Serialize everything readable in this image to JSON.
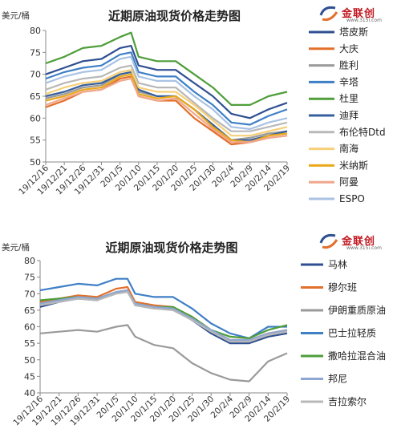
{
  "brand": {
    "name": "金联创",
    "url": "www.315i.com"
  },
  "chart_data": [
    {
      "type": "line",
      "title": "近期原油现货价格走势图",
      "ylabel": "美元/桶",
      "xlabel": "",
      "ylim": [
        50,
        80
      ],
      "yticks": [
        50,
        55,
        60,
        65,
        70,
        75,
        80
      ],
      "x_ticks": [
        "19/12/16",
        "19/12/21",
        "19/12/26",
        "19/12/31",
        "20/1/5",
        "20/1/10",
        "20/1/15",
        "20/1/20",
        "20/1/25",
        "20/1/30",
        "20/2/4",
        "20/2/9",
        "20/2/14",
        "20/2/19"
      ],
      "grid": false,
      "legend": "right",
      "series": [
        {
          "name": "塔皮斯",
          "color": "#2e4f91",
          "x": [
            "19/12/16",
            "19/12/21",
            "19/12/26",
            "19/12/31",
            "20/1/5",
            "20/1/8",
            "20/1/10",
            "20/1/15",
            "20/1/20",
            "20/1/25",
            "20/1/30",
            "20/2/4",
            "20/2/9",
            "20/2/14",
            "20/2/19"
          ],
          "values": [
            70,
            71.5,
            73,
            73.5,
            76,
            76.5,
            72,
            71,
            71,
            68,
            65,
            61,
            60,
            62,
            63.5
          ]
        },
        {
          "name": "大庆",
          "color": "#e2702c",
          "x": [
            "19/12/16",
            "19/12/21",
            "19/12/26",
            "19/12/31",
            "20/1/5",
            "20/1/8",
            "20/1/10",
            "20/1/15",
            "20/1/20",
            "20/1/25",
            "20/1/30",
            "20/2/4",
            "20/2/9",
            "20/2/14",
            "20/2/19"
          ],
          "values": [
            62.5,
            64,
            66,
            66.5,
            69,
            69.5,
            65,
            64,
            64,
            60,
            57,
            54,
            54.5,
            55.5,
            56
          ]
        },
        {
          "name": "胜利",
          "color": "#9a9a9a",
          "x": [
            "19/12/16",
            "19/12/21",
            "19/12/26",
            "19/12/31",
            "20/1/5",
            "20/1/8",
            "20/1/10",
            "20/1/15",
            "20/1/20",
            "20/1/25",
            "20/1/30",
            "20/2/4",
            "20/2/9",
            "20/2/14",
            "20/2/19"
          ],
          "values": [
            64.5,
            65.5,
            67,
            67.5,
            70,
            70.5,
            66,
            65,
            65,
            62,
            58,
            55,
            55.5,
            56.5,
            57
          ]
        },
        {
          "name": "辛塔",
          "color": "#3f7fc6",
          "x": [
            "19/12/16",
            "19/12/21",
            "19/12/26",
            "19/12/31",
            "20/1/5",
            "20/1/8",
            "20/1/10",
            "20/1/15",
            "20/1/20",
            "20/1/25",
            "20/1/30",
            "20/2/4",
            "20/2/9",
            "20/2/14",
            "20/2/19"
          ],
          "values": [
            69,
            70.5,
            71.5,
            72,
            74.5,
            75,
            70.5,
            69.5,
            69.5,
            66,
            63,
            59,
            58.5,
            60.5,
            62
          ]
        },
        {
          "name": "杜里",
          "color": "#4e9e3a",
          "x": [
            "19/12/16",
            "19/12/21",
            "19/12/26",
            "19/12/31",
            "20/1/5",
            "20/1/8",
            "20/1/10",
            "20/1/15",
            "20/1/20",
            "20/1/25",
            "20/1/30",
            "20/2/4",
            "20/2/9",
            "20/2/14",
            "20/2/19"
          ],
          "values": [
            72.5,
            74,
            76,
            76.5,
            78.5,
            79.5,
            74,
            73,
            73,
            70,
            67,
            63,
            63,
            65,
            66
          ]
        },
        {
          "name": "迪拜",
          "color": "#365f9c",
          "x": [
            "19/12/16",
            "19/12/21",
            "19/12/26",
            "19/12/31",
            "20/1/5",
            "20/1/8",
            "20/1/10",
            "20/1/15",
            "20/1/20",
            "20/1/25",
            "20/1/30",
            "20/2/4",
            "20/2/9",
            "20/2/14",
            "20/2/19"
          ],
          "values": [
            65,
            66,
            67.5,
            68,
            70,
            70.5,
            66.5,
            65,
            65,
            62,
            58.5,
            55,
            55,
            56,
            57
          ]
        },
        {
          "name": "布伦特Dtd",
          "color": "#b8b8b8",
          "x": [
            "19/12/16",
            "19/12/21",
            "19/12/26",
            "19/12/31",
            "20/1/5",
            "20/1/8",
            "20/1/10",
            "20/1/15",
            "20/1/20",
            "20/1/25",
            "20/1/30",
            "20/2/4",
            "20/2/9",
            "20/2/14",
            "20/2/19"
          ],
          "values": [
            66.5,
            68,
            69,
            69.5,
            71.5,
            72,
            68,
            67,
            67,
            63.5,
            60,
            57,
            57,
            58,
            59
          ]
        },
        {
          "name": "南海",
          "color": "#f6cf78",
          "x": [
            "19/12/16",
            "19/12/21",
            "19/12/26",
            "19/12/31",
            "20/1/5",
            "20/1/8",
            "20/1/10",
            "20/1/15",
            "20/1/20",
            "20/1/25",
            "20/1/30",
            "20/2/4",
            "20/2/9",
            "20/2/14",
            "20/2/19"
          ],
          "values": [
            65.5,
            67,
            68,
            68.5,
            70.5,
            71,
            67,
            66,
            66,
            63,
            59.5,
            56,
            56,
            57,
            58
          ]
        },
        {
          "name": "米纳斯",
          "color": "#e9a81b",
          "x": [
            "19/12/16",
            "19/12/21",
            "19/12/26",
            "19/12/31",
            "20/1/5",
            "20/1/8",
            "20/1/10",
            "20/1/15",
            "20/1/20",
            "20/1/25",
            "20/1/30",
            "20/2/4",
            "20/2/9",
            "20/2/14",
            "20/2/19"
          ],
          "values": [
            64,
            65,
            66.5,
            67,
            69.5,
            70,
            65.5,
            64.5,
            65,
            62,
            58,
            55,
            54.5,
            56,
            56.5
          ]
        },
        {
          "name": "阿曼",
          "color": "#f0a78d",
          "x": [
            "19/12/16",
            "19/12/21",
            "19/12/26",
            "19/12/31",
            "20/1/5",
            "20/1/8",
            "20/1/10",
            "20/1/15",
            "20/1/20",
            "20/1/25",
            "20/1/30",
            "20/2/4",
            "20/2/9",
            "20/2/14",
            "20/2/19"
          ],
          "values": [
            63,
            64.5,
            66,
            66.5,
            68.5,
            69,
            65,
            64,
            64.5,
            61,
            57.5,
            54.5,
            54.5,
            55.5,
            56
          ]
        },
        {
          "name": "ESPO",
          "color": "#a9c2e3",
          "x": [
            "19/12/16",
            "19/12/21",
            "19/12/26",
            "19/12/31",
            "20/1/5",
            "20/1/8",
            "20/1/10",
            "20/1/15",
            "20/1/20",
            "20/1/25",
            "20/1/30",
            "20/2/4",
            "20/2/9",
            "20/2/14",
            "20/2/19"
          ],
          "values": [
            68,
            69.5,
            70.5,
            71,
            73.5,
            74,
            69.5,
            68.5,
            68.5,
            65,
            62,
            58,
            57.5,
            59,
            60
          ]
        }
      ]
    },
    {
      "type": "line",
      "title": "近期原油现货价格走势图",
      "ylabel": "美元/桶",
      "xlabel": "",
      "ylim": [
        40,
        80
      ],
      "yticks": [
        40,
        45,
        50,
        55,
        60,
        65,
        70,
        75,
        80
      ],
      "x_ticks": [
        "19/12/16",
        "19/12/21",
        "19/12/26",
        "19/12/31",
        "20/1/5",
        "20/1/10",
        "20/1/15",
        "20/1/20",
        "20/1/25",
        "20/1/30",
        "20/2/4",
        "20/2/9",
        "20/2/14",
        "20/2/19"
      ],
      "grid": false,
      "legend": "right",
      "series": [
        {
          "name": "马林",
          "color": "#2e4f91",
          "x": [
            "19/12/16",
            "19/12/21",
            "19/12/26",
            "19/12/31",
            "20/1/5",
            "20/1/8",
            "20/1/10",
            "20/1/15",
            "20/1/20",
            "20/1/25",
            "20/1/30",
            "20/2/4",
            "20/2/9",
            "20/2/14",
            "20/2/19"
          ],
          "values": [
            66,
            67.5,
            68.5,
            68,
            70.5,
            71,
            66.5,
            65.5,
            65.5,
            62,
            58,
            55,
            55,
            57,
            58
          ]
        },
        {
          "name": "穆尔班",
          "color": "#e2702c",
          "x": [
            "19/12/16",
            "19/12/21",
            "19/12/26",
            "19/12/31",
            "20/1/5",
            "20/1/8",
            "20/1/10",
            "20/1/15",
            "20/1/20",
            "20/1/25",
            "20/1/30",
            "20/2/4",
            "20/2/9",
            "20/2/14",
            "20/2/19"
          ],
          "values": [
            67.5,
            68.5,
            69.5,
            69,
            71.5,
            72,
            67.5,
            66.5,
            66,
            63,
            59,
            56,
            56,
            58,
            59
          ]
        },
        {
          "name": "伊朗重质原油",
          "color": "#9a9a9a",
          "x": [
            "19/12/16",
            "19/12/21",
            "19/12/26",
            "19/12/31",
            "20/1/5",
            "20/1/8",
            "20/1/10",
            "20/1/15",
            "20/1/20",
            "20/1/25",
            "20/1/30",
            "20/2/4",
            "20/2/9",
            "20/2/14",
            "20/2/19"
          ],
          "values": [
            58,
            58.5,
            59,
            58.5,
            60,
            60.5,
            57,
            54.5,
            53.5,
            49,
            46,
            44,
            43.5,
            49.5,
            52
          ]
        },
        {
          "name": "巴士拉轻质",
          "color": "#3f7fc6",
          "x": [
            "19/12/16",
            "19/12/21",
            "19/12/26",
            "19/12/31",
            "20/1/5",
            "20/1/8",
            "20/1/10",
            "20/1/15",
            "20/1/20",
            "20/1/25",
            "20/1/30",
            "20/2/4",
            "20/2/9",
            "20/2/14",
            "20/2/19"
          ],
          "values": [
            71,
            72,
            73,
            72.5,
            74.5,
            74.5,
            70,
            69,
            69,
            65.5,
            61,
            58,
            56.5,
            60,
            60
          ]
        },
        {
          "name": "撒哈拉混合油",
          "color": "#4e9e3a",
          "x": [
            "19/12/16",
            "19/12/21",
            "19/12/26",
            "19/12/31",
            "20/1/5",
            "20/1/8",
            "20/1/10",
            "20/1/15",
            "20/1/20",
            "20/1/25",
            "20/1/30",
            "20/2/4",
            "20/2/9",
            "20/2/14",
            "20/2/19"
          ],
          "values": [
            68,
            68.5,
            69,
            68.5,
            70.5,
            70.5,
            67,
            66,
            66,
            63,
            59,
            57,
            56.5,
            59,
            60.5
          ]
        },
        {
          "name": "邦尼",
          "color": "#8ea6d3",
          "x": [
            "19/12/16",
            "19/12/21",
            "19/12/26",
            "19/12/31",
            "20/1/5",
            "20/1/8",
            "20/1/10",
            "20/1/15",
            "20/1/20",
            "20/1/25",
            "20/1/30",
            "20/2/4",
            "20/2/9",
            "20/2/14",
            "20/2/19"
          ],
          "values": [
            67,
            68,
            69,
            68.5,
            70.5,
            71,
            67,
            66,
            65.5,
            62.5,
            59,
            56,
            56,
            58,
            59
          ]
        },
        {
          "name": "吉拉索尔",
          "color": "#b8b8b8",
          "x": [
            "19/12/16",
            "19/12/21",
            "19/12/26",
            "19/12/31",
            "20/1/5",
            "20/1/8",
            "20/1/10",
            "20/1/15",
            "20/1/20",
            "20/1/25",
            "20/1/30",
            "20/2/4",
            "20/2/9",
            "20/2/14",
            "20/2/19"
          ],
          "values": [
            66.5,
            67.5,
            68.5,
            68,
            70,
            70.5,
            66.5,
            65.5,
            65,
            62,
            58.5,
            55.5,
            55.5,
            57.5,
            58.5
          ]
        }
      ]
    }
  ]
}
